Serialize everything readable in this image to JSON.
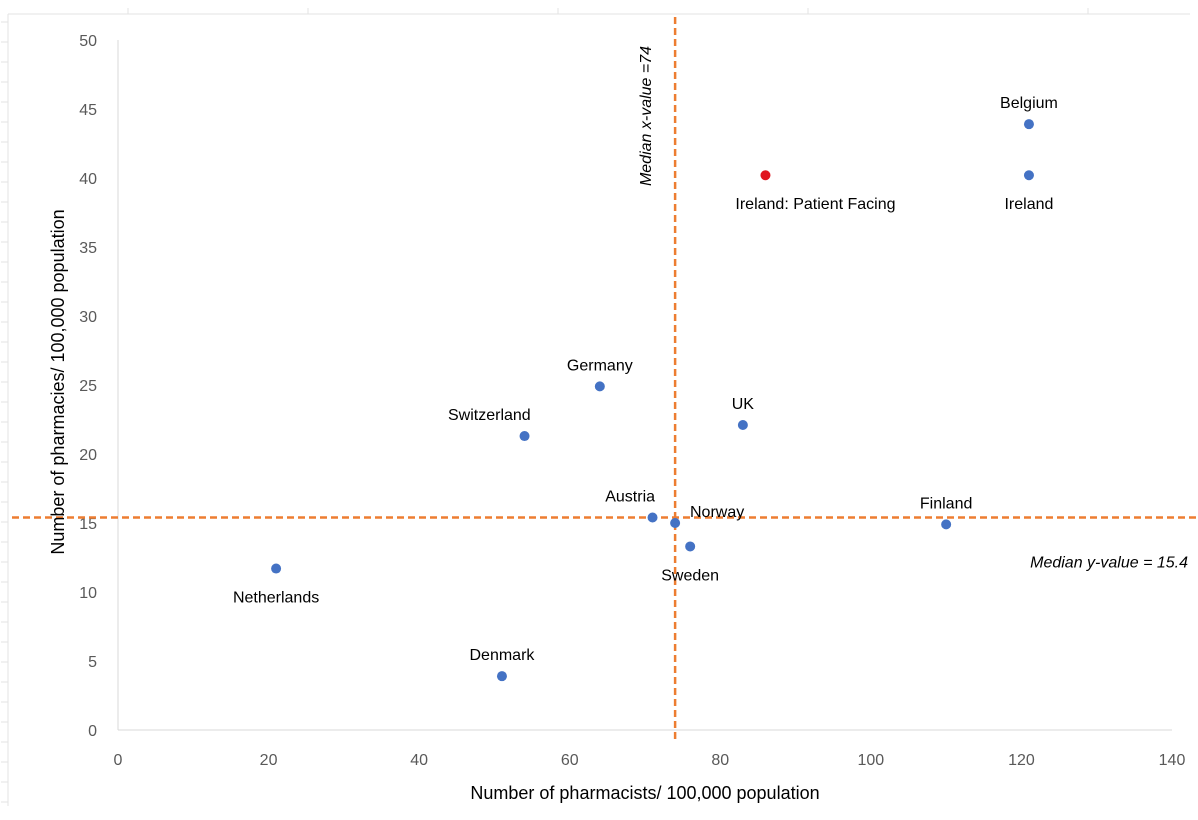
{
  "chart_data": {
    "type": "scatter",
    "xlabel": "Number of pharmacists/ 100,000 population",
    "ylabel": "Number of pharmacies/ 100,000 population",
    "xlim": [
      0,
      140
    ],
    "ylim": [
      0,
      50
    ],
    "x_ticks": [
      0,
      20,
      40,
      60,
      80,
      100,
      120,
      140
    ],
    "y_ticks": [
      0,
      5,
      10,
      15,
      20,
      25,
      30,
      35,
      40,
      45,
      50
    ],
    "grid": false,
    "points": [
      {
        "label": "Netherlands",
        "x": 21,
        "y": 11.7,
        "color": "#4472C4",
        "label_pos": "below"
      },
      {
        "label": "Denmark",
        "x": 51,
        "y": 3.9,
        "color": "#4472C4",
        "label_pos": "above"
      },
      {
        "label": "Switzerland",
        "x": 54,
        "y": 21.3,
        "color": "#4472C4",
        "label_pos": "above-left"
      },
      {
        "label": "Germany",
        "x": 64,
        "y": 24.9,
        "color": "#4472C4",
        "label_pos": "above"
      },
      {
        "label": "Austria",
        "x": 71,
        "y": 15.4,
        "color": "#4472C4",
        "label_pos": "above-left"
      },
      {
        "label": "Norway",
        "x": 74,
        "y": 15.0,
        "color": "#4472C4",
        "label_pos": "above-right"
      },
      {
        "label": "Sweden",
        "x": 76,
        "y": 13.3,
        "color": "#4472C4",
        "label_pos": "below"
      },
      {
        "label": "UK",
        "x": 83,
        "y": 22.1,
        "color": "#4472C4",
        "label_pos": "above"
      },
      {
        "label": "Finland",
        "x": 110,
        "y": 14.9,
        "color": "#4472C4",
        "label_pos": "above"
      },
      {
        "label": "Ireland",
        "x": 121,
        "y": 40.2,
        "color": "#4472C4",
        "label_pos": "below"
      },
      {
        "label": "Belgium",
        "x": 121,
        "y": 43.9,
        "color": "#4472C4",
        "label_pos": "above"
      },
      {
        "label": "Ireland: Patient Facing",
        "x": 86,
        "y": 40.2,
        "color": "#E0141E",
        "label_pos": "below"
      }
    ],
    "reference_lines": [
      {
        "orientation": "vertical",
        "value": 74,
        "label": "Median x-value =74",
        "color": "#ED7D31"
      },
      {
        "orientation": "horizontal",
        "value": 15.4,
        "label": "Median y-value = 15.4",
        "color": "#ED7D31"
      }
    ]
  }
}
